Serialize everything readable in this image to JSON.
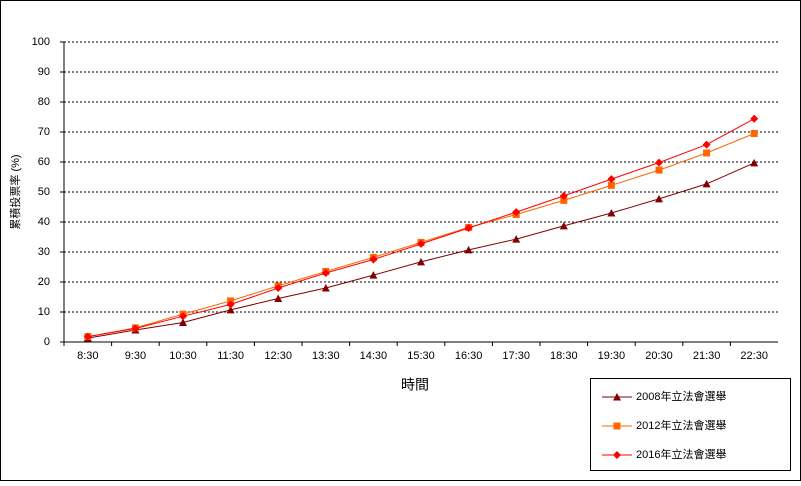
{
  "chart_data": {
    "type": "line",
    "x_label": "時間",
    "y_label": "累積投票率 (%)",
    "categories": [
      "8:30",
      "9:30",
      "10:30",
      "11:30",
      "12:30",
      "13:30",
      "14:30",
      "15:30",
      "16:30",
      "17:30",
      "18:30",
      "19:30",
      "20:30",
      "21:30",
      "22:30"
    ],
    "ylim": [
      0,
      100
    ],
    "yticks": [
      0,
      10,
      20,
      30,
      40,
      50,
      60,
      70,
      80,
      90,
      100
    ],
    "grid": true,
    "legend": "bottom-right",
    "series": [
      {
        "name": "2008年立法會選舉",
        "color": "#800000",
        "marker": "triangle",
        "values": [
          1.3,
          4,
          6.5,
          10.7,
          14.5,
          18,
          22.3,
          26.7,
          30.7,
          34.3,
          38.7,
          43,
          47.7,
          52.7,
          59.7
        ]
      },
      {
        "name": "2012年立法會選舉",
        "color": "#ff6600",
        "marker": "square",
        "values": [
          1.8,
          4.7,
          9.3,
          13.7,
          18.7,
          23.5,
          28.2,
          33.2,
          38.2,
          42.5,
          47.2,
          52.2,
          57.3,
          63,
          69.5
        ]
      },
      {
        "name": "2016年立法會選舉",
        "color": "#ff0000",
        "marker": "diamond",
        "values": [
          1.8,
          4.5,
          8.6,
          12.5,
          18,
          23,
          27.5,
          32.7,
          38,
          43.3,
          48.7,
          54.3,
          59.8,
          65.8,
          74.4
        ]
      }
    ]
  }
}
